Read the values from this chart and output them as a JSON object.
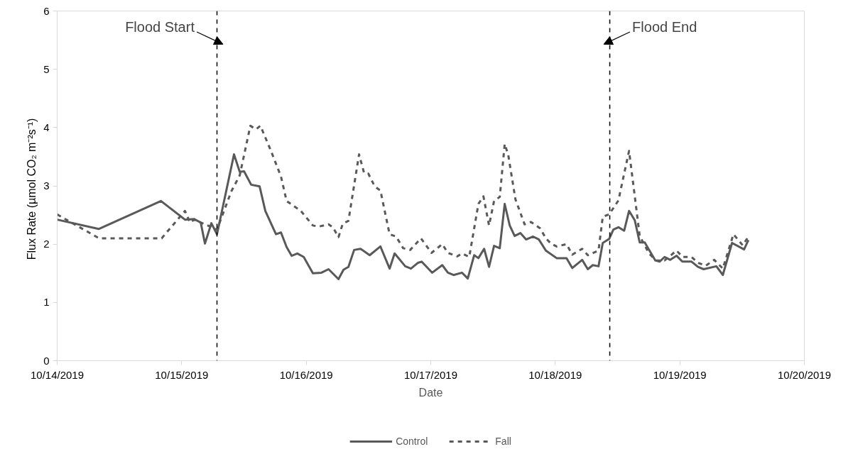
{
  "chart_data": {
    "type": "line",
    "xlabel": "Date",
    "ylabel": "Flux  Rate (µmol CO₂  m⁻²s⁻¹)",
    "xlim": [
      "2019-10-14",
      "2019-10-20"
    ],
    "xticks": [
      {
        "value": "2019-10-14",
        "label": "10/14/2019"
      },
      {
        "value": "2019-10-15",
        "label": "10/15/2019"
      },
      {
        "value": "2019-10-16",
        "label": "10/16/2019"
      },
      {
        "value": "2019-10-17",
        "label": "10/17/2019"
      },
      {
        "value": "2019-10-18",
        "label": "10/18/2019"
      },
      {
        "value": "2019-10-19",
        "label": "10/19/2019"
      },
      {
        "value": "2019-10-20",
        "label": "10/20/2019"
      }
    ],
    "ylim": [
      0,
      6
    ],
    "yticks": [
      0,
      1,
      2,
      3,
      4,
      5,
      6
    ],
    "grid": false,
    "legend": "bottom",
    "ref_lines": [
      {
        "axis": "x",
        "value": "2019-10-15T06:48",
        "label": "Flood Start",
        "color": "#000000",
        "line_style": "dashed"
      },
      {
        "axis": "x",
        "value": "2019-10-18T10:30",
        "label": "Flood End",
        "color": "#000000",
        "line_style": "dashed"
      }
    ],
    "series": [
      {
        "name": "Control",
        "color": "#595959",
        "line_style": "solid",
        "x": [
          "2019-10-14T00:00",
          "2019-10-14T08:00",
          "2019-10-14T20:00",
          "2019-10-15T00:38",
          "2019-10-15T02:25",
          "2019-10-15T03:40",
          "2019-10-15T04:29",
          "2019-10-15T05:43",
          "2019-10-15T06:48",
          "2019-10-15T10:05",
          "2019-10-15T11:11",
          "2019-10-15T12:01",
          "2019-10-15T13:23",
          "2019-10-15T15:01",
          "2019-10-15T16:07",
          "2019-10-15T18:10",
          "2019-10-15T19:08",
          "2019-10-15T20:13",
          "2019-10-15T21:11",
          "2019-10-15T22:17",
          "2019-10-15T23:31",
          "2019-10-16T01:17",
          "2019-10-16T02:56",
          "2019-10-16T04:18",
          "2019-10-16T06:13",
          "2019-10-16T07:11",
          "2019-10-16T08:08",
          "2019-10-16T09:14",
          "2019-10-16T10:28",
          "2019-10-16T12:14",
          "2019-10-16T14:18",
          "2019-10-16T16:04",
          "2019-10-16T17:02",
          "2019-10-16T19:05",
          "2019-10-16T20:11",
          "2019-10-16T21:33",
          "2019-10-16T22:14",
          "2019-10-17T00:17",
          "2019-10-17T02:13",
          "2019-10-17T03:18",
          "2019-10-17T04:24",
          "2019-10-17T06:02",
          "2019-10-17T07:08",
          "2019-10-17T08:22",
          "2019-10-17T09:11",
          "2019-10-17T10:17",
          "2019-10-17T11:14",
          "2019-10-17T12:12",
          "2019-10-17T13:18",
          "2019-10-17T14:15",
          "2019-10-17T15:13",
          "2019-10-17T16:10",
          "2019-10-17T17:16",
          "2019-10-17T18:22",
          "2019-10-17T19:44",
          "2019-10-17T20:50",
          "2019-10-17T22:11",
          "2019-10-18T00:15",
          "2019-10-18T02:10",
          "2019-10-18T03:16",
          "2019-10-18T05:11",
          "2019-10-18T06:16",
          "2019-10-18T07:14",
          "2019-10-18T08:20",
          "2019-10-18T09:09",
          "2019-10-18T10:23",
          "2019-10-18T11:12",
          "2019-10-18T12:10",
          "2019-10-18T13:16",
          "2019-10-18T14:13",
          "2019-10-18T15:19",
          "2019-10-18T16:16",
          "2019-10-18T17:14",
          "2019-10-18T19:17",
          "2019-10-18T20:06",
          "2019-10-18T21:04",
          "2019-10-18T22:09",
          "2019-10-18T23:23",
          "2019-10-19T00:29",
          "2019-10-19T02:16",
          "2019-10-19T03:29",
          "2019-10-19T04:35",
          "2019-10-19T07:03",
          "2019-10-19T08:17",
          "2019-10-19T10:04",
          "2019-10-19T12:23",
          "2019-10-19T13:13"
        ],
        "values": [
          2.42,
          2.26,
          2.74,
          2.42,
          2.43,
          2.37,
          2.01,
          2.36,
          2.17,
          3.54,
          3.24,
          3.25,
          3.02,
          2.99,
          2.57,
          2.17,
          2.2,
          1.95,
          1.8,
          1.84,
          1.78,
          1.5,
          1.51,
          1.57,
          1.4,
          1.56,
          1.61,
          1.9,
          1.92,
          1.81,
          1.96,
          1.58,
          1.84,
          1.62,
          1.58,
          1.68,
          1.7,
          1.51,
          1.64,
          1.51,
          1.47,
          1.51,
          1.41,
          1.81,
          1.76,
          1.92,
          1.61,
          1.97,
          1.93,
          2.69,
          2.32,
          2.14,
          2.19,
          2.08,
          2.13,
          2.08,
          1.89,
          1.76,
          1.76,
          1.59,
          1.73,
          1.57,
          1.64,
          1.62,
          2.02,
          2.09,
          2.25,
          2.29,
          2.23,
          2.57,
          2.41,
          2.03,
          2.03,
          1.72,
          1.7,
          1.78,
          1.73,
          1.8,
          1.7,
          1.7,
          1.61,
          1.57,
          1.62,
          1.47,
          2.02,
          1.91,
          2.07
        ]
      },
      {
        "name": "Fall",
        "color": "#595959",
        "line_style": "dashed",
        "x": [
          "2019-10-14T00:00",
          "2019-10-14T08:05",
          "2019-10-14T20:08",
          "2019-10-15T00:38",
          "2019-10-15T01:36",
          "2019-10-15T02:25",
          "2019-10-15T06:48",
          "2019-10-15T07:29",
          "2019-10-15T09:32",
          "2019-10-15T11:11",
          "2019-10-15T13:14",
          "2019-10-15T14:20",
          "2019-10-15T15:10",
          "2019-10-15T17:04",
          "2019-10-15T19:08",
          "2019-10-15T20:13",
          "2019-10-15T22:58",
          "2019-10-16T01:17",
          "2019-10-16T02:23",
          "2019-10-16T04:18",
          "2019-10-16T05:07",
          "2019-10-16T06:13",
          "2019-10-16T07:02",
          "2019-10-16T08:08",
          "2019-10-16T10:11",
          "2019-10-16T11:09",
          "2019-10-16T11:58",
          "2019-10-16T13:12",
          "2019-10-16T14:18",
          "2019-10-16T16:04",
          "2019-10-16T17:19",
          "2019-10-16T18:41",
          "2019-10-16T20:02",
          "2019-10-16T22:06",
          "2019-10-17T00:09",
          "2019-10-17T02:13",
          "2019-10-17T03:18",
          "2019-10-17T05:05",
          "2019-10-17T06:02",
          "2019-10-17T07:25",
          "2019-10-17T09:11",
          "2019-10-17T10:09",
          "2019-10-17T11:14",
          "2019-10-17T12:12",
          "2019-10-17T13:18",
          "2019-10-17T14:15",
          "2019-10-17T14:56",
          "2019-10-17T16:19",
          "2019-10-17T18:05",
          "2019-10-17T19:19",
          "2019-10-17T21:06",
          "2019-10-17T22:11",
          "2019-10-17T23:09",
          "2019-10-18T00:15",
          "2019-10-18T02:10",
          "2019-10-18T03:16",
          "2019-10-18T05:11",
          "2019-10-18T06:16",
          "2019-10-18T08:20",
          "2019-10-18T09:09",
          "2019-10-18T10:23",
          "2019-10-18T12:10",
          "2019-10-18T14:13",
          "2019-10-18T15:10",
          "2019-10-18T16:16",
          "2019-10-18T18:03",
          "2019-10-18T19:25",
          "2019-10-18T21:04",
          "2019-10-18T23:23",
          "2019-10-19T00:29",
          "2019-10-19T02:16",
          "2019-10-19T03:29",
          "2019-10-19T05:00",
          "2019-10-19T06:38",
          "2019-10-19T08:17",
          "2019-10-19T10:20",
          "2019-10-19T12:07",
          "2019-10-19T13:13"
        ],
        "values": [
          2.51,
          2.1,
          2.1,
          2.57,
          2.37,
          2.42,
          2.25,
          2.41,
          2.9,
          3.18,
          4.03,
          3.97,
          4.03,
          3.63,
          3.16,
          2.74,
          2.57,
          2.32,
          2.3,
          2.34,
          2.29,
          2.12,
          2.35,
          2.4,
          3.54,
          3.22,
          3.21,
          2.99,
          2.92,
          2.17,
          2.13,
          1.93,
          1.9,
          2.1,
          1.85,
          2.0,
          1.85,
          1.79,
          1.84,
          1.78,
          2.69,
          2.82,
          2.32,
          2.74,
          2.81,
          3.72,
          3.53,
          2.77,
          2.34,
          2.38,
          2.27,
          2.1,
          2.01,
          1.96,
          2.0,
          1.82,
          1.92,
          1.81,
          1.89,
          2.47,
          2.51,
          2.75,
          3.6,
          2.93,
          2.14,
          1.84,
          1.72,
          1.72,
          1.89,
          1.78,
          1.78,
          1.68,
          1.63,
          1.73,
          1.58,
          2.17,
          1.98,
          2.13
        ]
      }
    ]
  }
}
